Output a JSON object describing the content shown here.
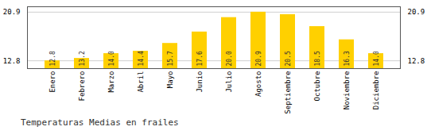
{
  "chart_data": {
    "type": "bar",
    "title": "Temperaturas Medias en frailes",
    "categories": [
      "Enero",
      "Febrero",
      "Marzo",
      "Abril",
      "Mayo",
      "Junio",
      "Julio",
      "Agosto",
      "Septiembre",
      "Octubre",
      "Noviembre",
      "Diciembre"
    ],
    "values": [
      12.8,
      13.2,
      14.0,
      14.4,
      15.7,
      17.6,
      20.0,
      20.9,
      20.5,
      18.5,
      16.3,
      14.0
    ],
    "value_labels": [
      "12.8",
      "13.2",
      "14.0",
      "14.4",
      "15.7",
      "17.6",
      "20.0",
      "20.9",
      "20.5",
      "18.5",
      "16.3",
      "14.0"
    ],
    "color": "#FFD000",
    "ylim": [
      11.5,
      21.8
    ],
    "yticks": [
      12.8,
      20.9
    ],
    "grid": true,
    "data_labels": true
  }
}
